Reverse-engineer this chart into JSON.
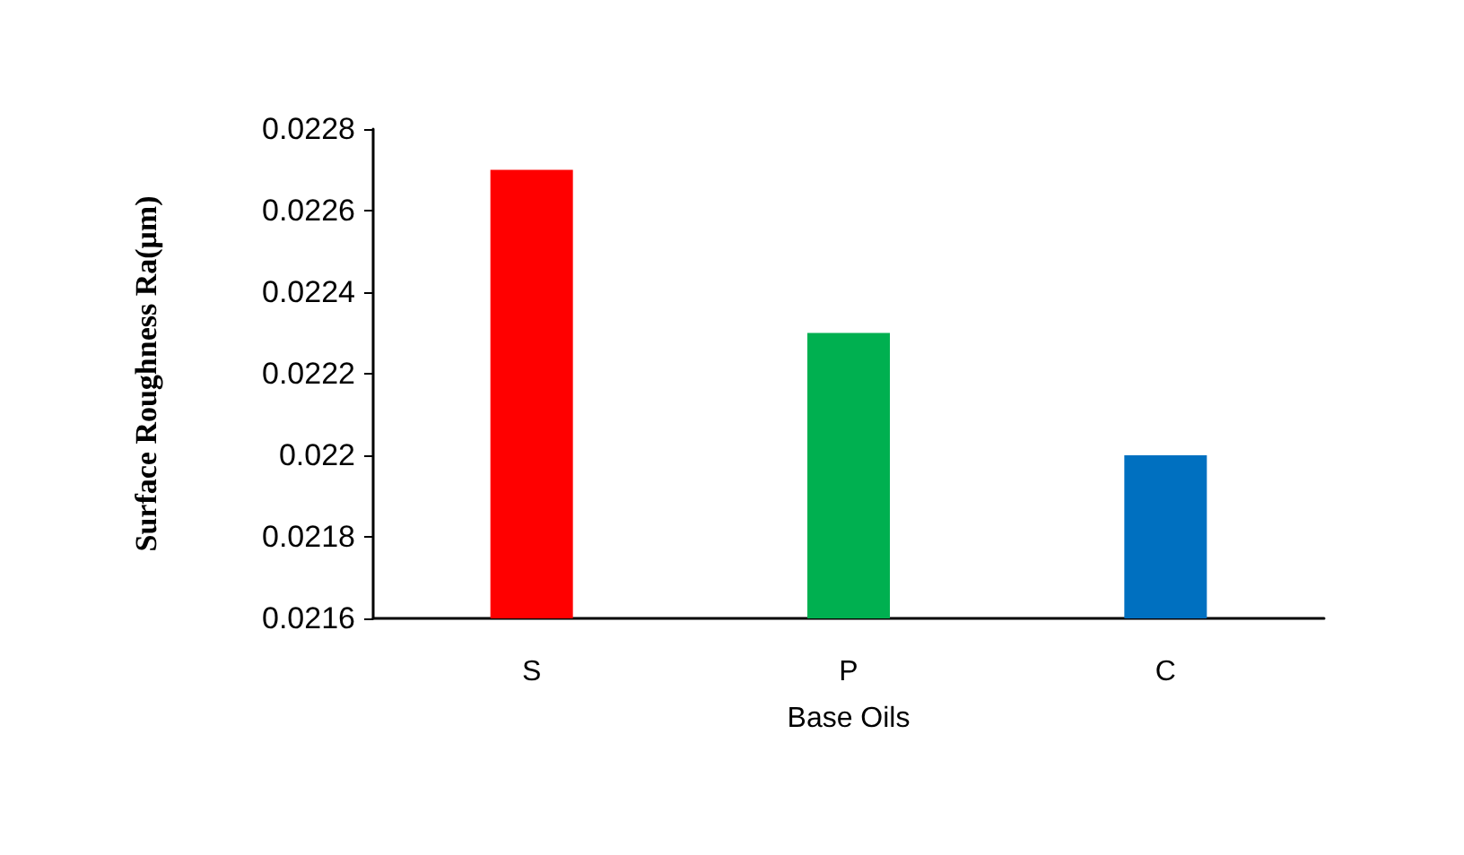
{
  "chart_data": {
    "type": "bar",
    "xlabel": "Base Oils",
    "ylabel": "Surface Roughness Ra(μm)",
    "categories": [
      "S",
      "P",
      "C"
    ],
    "values": [
      0.0227,
      0.0223,
      0.022
    ],
    "colors": [
      "#ff0000",
      "#00b050",
      "#0070c0"
    ],
    "ylim": [
      0.0216,
      0.0228
    ],
    "yticks": [
      0.0216,
      0.0218,
      0.022,
      0.0222,
      0.0224,
      0.0226,
      0.0228
    ],
    "grid": false
  }
}
